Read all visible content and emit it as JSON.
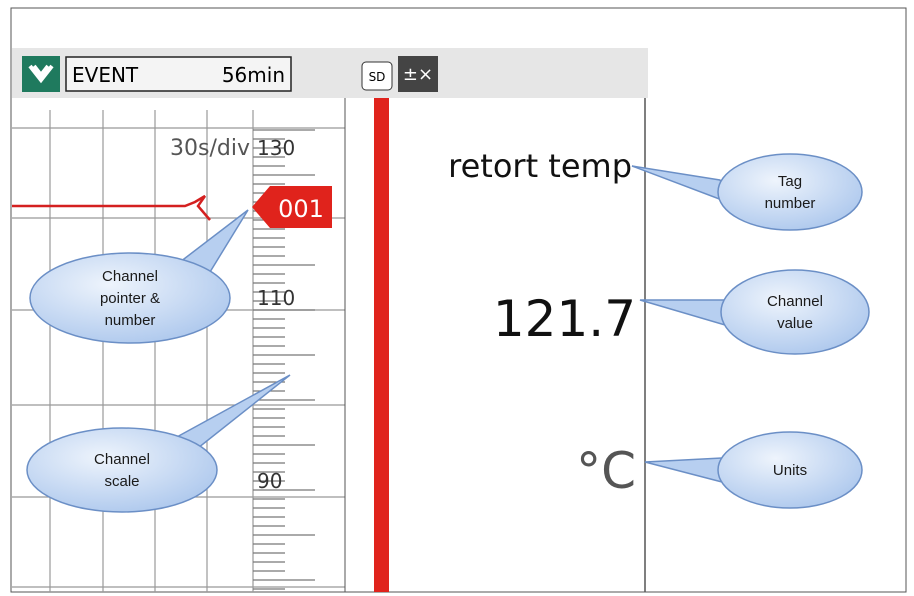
{
  "status_bar": {
    "mode": "EVENT",
    "duration": "56min",
    "card": "SD"
  },
  "trend": {
    "speed": "30s/div",
    "scale_labels": [
      "130",
      "110",
      "90"
    ],
    "pointer": "001"
  },
  "panel": {
    "tag": "retort temp",
    "value": "121.7",
    "units": "°C"
  },
  "callouts": {
    "tag_number": [
      "Tag",
      "number"
    ],
    "channel_value": [
      "Channel",
      "value"
    ],
    "units": [
      "Units"
    ],
    "channel_pointer": [
      "Channel",
      "pointer &",
      "number"
    ],
    "channel_scale": [
      "Channel",
      "scale"
    ]
  }
}
